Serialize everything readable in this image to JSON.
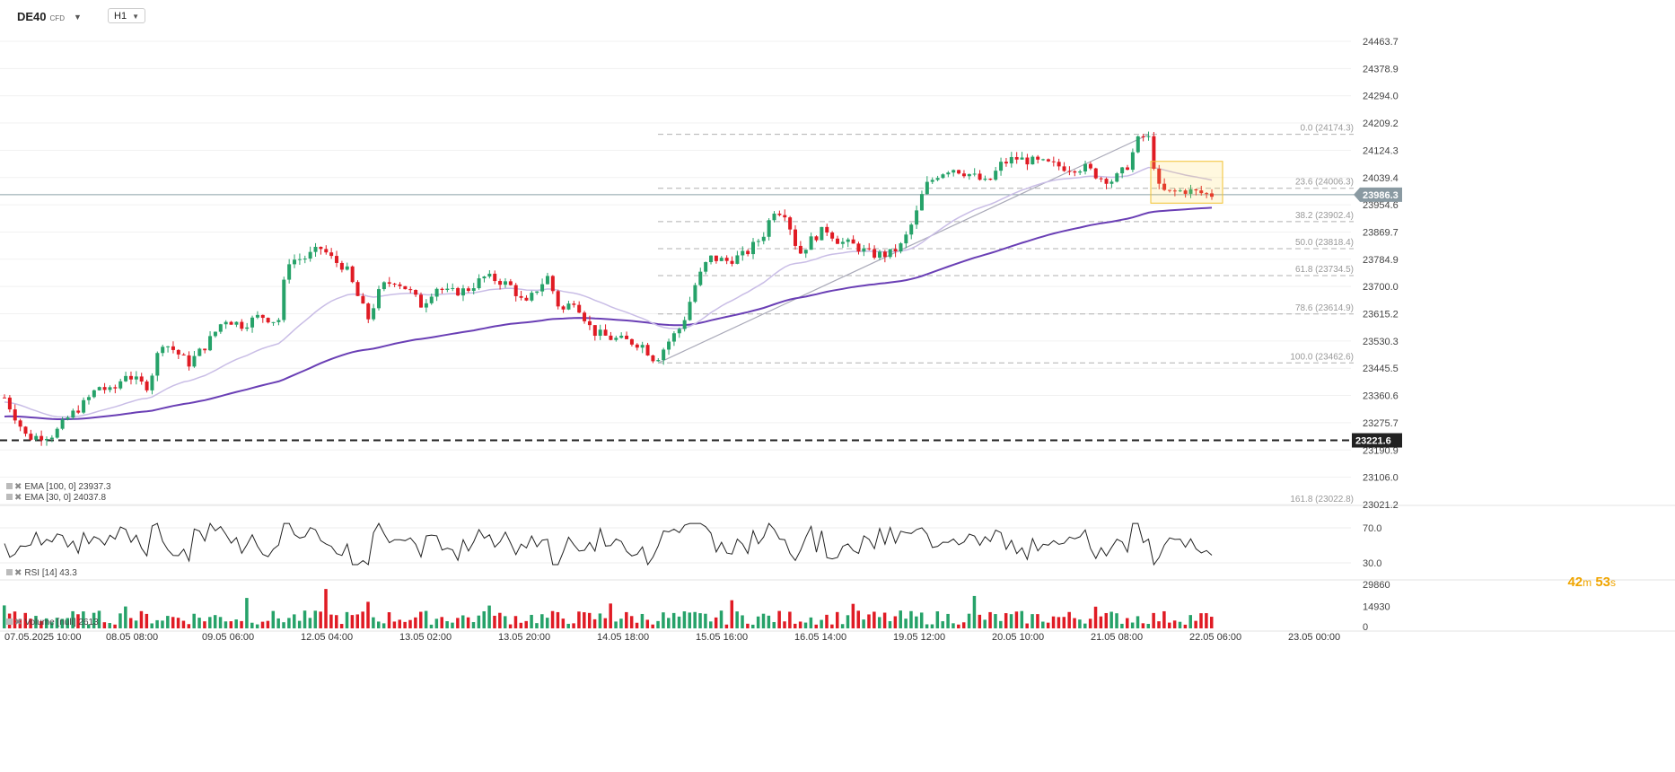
{
  "toolbar": {
    "symbol": "DE40",
    "symbol_type": "CFD",
    "symbol_caret": "chevron-down",
    "timeframe": "H1"
  },
  "colors": {
    "bull": "#26a269",
    "bear": "#e01b24",
    "ema100": "#6a3fb5",
    "ema30": "#c9bde6",
    "fib": "#b0b0b0",
    "timer": "#f0a500"
  },
  "price_axis": [
    "24463.7",
    "24378.9",
    "24294.0",
    "24209.2",
    "24124.3",
    "24039.4",
    "23954.6",
    "23869.7",
    "23784.9",
    "23700.0",
    "23615.2",
    "23530.3",
    "23445.5",
    "23360.6",
    "23275.7",
    "23190.9",
    "23106.0",
    "23021.2"
  ],
  "current_price": "23986.3",
  "support_level": "23221.6",
  "fib_levels": [
    {
      "label": "0.0 (24174.3)",
      "price": 24174.3
    },
    {
      "label": "23.6 (24006.3)",
      "price": 24006.3
    },
    {
      "label": "38.2 (23902.4)",
      "price": 23902.4
    },
    {
      "label": "50.0 (23818.4)",
      "price": 23818.4
    },
    {
      "label": "61.8 (23734.5)",
      "price": 23734.5
    },
    {
      "label": "78.6 (23614.9)",
      "price": 23614.9
    },
    {
      "label": "100.0 (23462.6)",
      "price": 23462.6
    }
  ],
  "fib_extra": "161.8 (23022.8)",
  "timer": {
    "minutes": "42",
    "m": "m",
    "seconds": "53",
    "s": "s"
  },
  "legends": {
    "ema100": "EMA [100, 0] 23937.3",
    "ema30": "EMA [30, 0] 24037.8",
    "rsi": "RSI [14] 43.3",
    "volume": "Volume [null] 2613"
  },
  "rsi_axis": [
    "70.0",
    "30.0"
  ],
  "volume_axis": [
    "29860",
    "14930",
    "0"
  ],
  "time_axis": [
    "07.05.2025",
    "10:00",
    "08.05 08:00",
    "09.05 06:00",
    "12.05 04:00",
    "13.05 02:00",
    "13.05 20:00",
    "14.05 18:00",
    "15.05 16:00",
    "16.05 14:00",
    "19.05 12:00",
    "20.05 10:00",
    "21.05 08:00",
    "22.05 06:00",
    "23.05 00:00"
  ]
}
